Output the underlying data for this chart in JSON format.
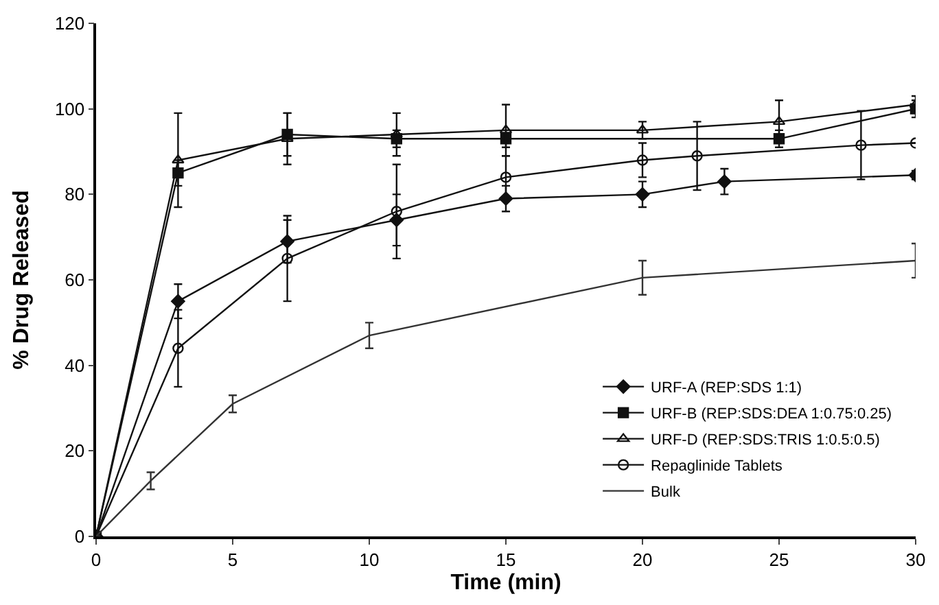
{
  "chart_data": {
    "type": "line",
    "xlabel": "Time (min)",
    "ylabel": "% Drug Released",
    "xlim": [
      0,
      30
    ],
    "xticks": [
      0,
      5,
      10,
      15,
      20,
      25,
      30
    ],
    "ylim": [
      0,
      120
    ],
    "yticks": [
      0,
      20,
      40,
      60,
      80,
      100,
      120
    ],
    "legend": "bottom right",
    "series": [
      {
        "name": "URF-A (REP:SDS 1:1)",
        "color": "#111111",
        "marker": "diamond",
        "x": [
          0,
          3,
          7,
          11,
          15,
          20,
          23,
          30
        ],
        "values": [
          0,
          55,
          69,
          74,
          79,
          80,
          83,
          84.5
        ],
        "errors": [
          null,
          4,
          5,
          6,
          3,
          3,
          3,
          1
        ]
      },
      {
        "name": "URF-B (REP:SDS:DEA 1:0.75:0.25)",
        "color": "#111111",
        "marker": "square",
        "x": [
          0,
          3,
          7,
          11,
          15,
          25,
          30
        ],
        "values": [
          0,
          85,
          94,
          93,
          93,
          93,
          100
        ],
        "errors": [
          null,
          3,
          5,
          2,
          2,
          2,
          2
        ]
      },
      {
        "name": "URF-D (REP:SDS:TRIS 1:0.5:0.5)",
        "color": "#111111",
        "marker": "triangle",
        "x": [
          0,
          3,
          7,
          11,
          15,
          20,
          25,
          30
        ],
        "values": [
          0,
          88,
          93,
          94,
          95,
          95,
          97,
          101
        ],
        "errors": [
          null,
          11,
          6,
          5,
          6,
          2,
          5,
          2
        ]
      },
      {
        "name": "Repaglinide Tablets",
        "color": "#111111",
        "marker": "circle",
        "x": [
          0,
          3,
          7,
          11,
          15,
          20,
          22,
          28,
          30
        ],
        "values": [
          0,
          44,
          65,
          76,
          84,
          88,
          89,
          91.5,
          92
        ],
        "errors": [
          null,
          9,
          10,
          11,
          5,
          4,
          8,
          8,
          null
        ]
      },
      {
        "name": "Bulk",
        "color": "#333333",
        "marker": "none",
        "x": [
          0,
          2,
          5,
          10,
          20,
          30
        ],
        "values": [
          0,
          13,
          31,
          47,
          60.5,
          64.5
        ],
        "errors": [
          null,
          2,
          2,
          3,
          4,
          4
        ]
      }
    ]
  }
}
